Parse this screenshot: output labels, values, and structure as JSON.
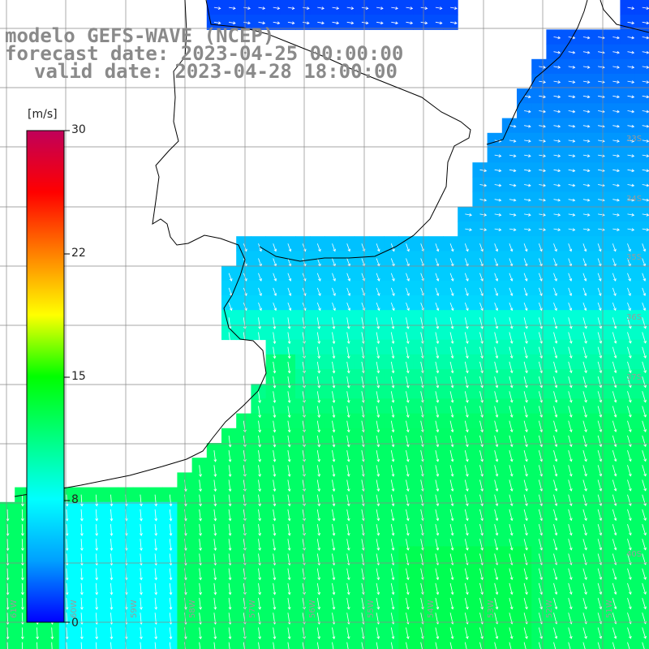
{
  "title": {
    "line1": "modelo GEFS-WAVE (NCEP)",
    "line2": "forecast date: 2023-04-25 00:00:00",
    "line3": "valid date: 2023-04-28 18:00:00"
  },
  "colorbar": {
    "unit": "[m/s]",
    "ticks": [
      "30",
      "22",
      "15",
      "8",
      "0"
    ],
    "stops": [
      "#0000ff",
      "#00a0ff",
      "#00ffff",
      "#00ff80",
      "#00ff00",
      "#ffff00",
      "#ff8000",
      "#ff0000",
      "#c0005a"
    ]
  },
  "grid": {
    "lat_labels": [
      "33S",
      "34S",
      "35S",
      "36S",
      "37S",
      "40S"
    ],
    "lon_labels": [
      "61W",
      "60W",
      "59W",
      "58W",
      "57W",
      "56W",
      "55W",
      "54W",
      "53W",
      "52W",
      "51W"
    ]
  },
  "colors": {
    "land": "#ffffff",
    "coast": "#000000",
    "grid_line": "#888888",
    "arrow": "#ffffff",
    "title_text": "#8a8a8a"
  }
}
